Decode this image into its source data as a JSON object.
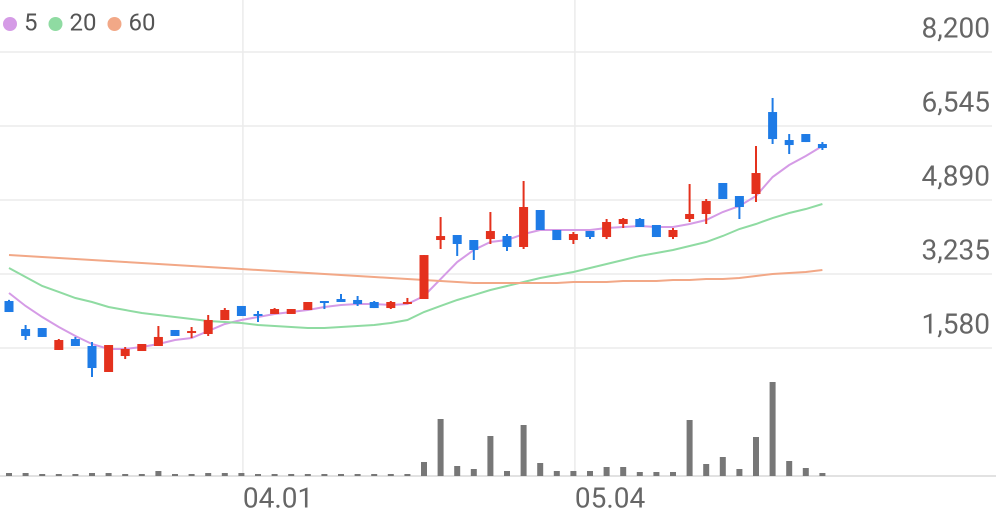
{
  "chart_data": {
    "type": "candlestick",
    "categories": [
      null,
      null,
      null,
      null,
      null,
      null,
      null,
      null,
      null,
      null,
      null,
      null,
      null,
      null,
      "04.01",
      null,
      null,
      null,
      null,
      null,
      null,
      null,
      null,
      null,
      null,
      null,
      null,
      null,
      null,
      null,
      null,
      null,
      null,
      null,
      "05.04",
      null,
      null,
      null,
      null,
      null,
      null,
      null,
      null,
      null,
      null,
      null,
      null,
      null,
      null,
      null
    ],
    "open": [
      2632,
      2006,
      2028,
      1537,
      1782,
      1626,
      1045,
      1402,
      1514,
      1626,
      1984,
      1917,
      1894,
      2207,
      2521,
      2342,
      2342,
      2342,
      2431,
      2632,
      2677,
      2655,
      2610,
      2475,
      2565,
      2677,
      3996,
      4108,
      3996,
      4018,
      4086,
      3840,
      4667,
      4220,
      3996,
      4197,
      4063,
      4354,
      4466,
      4332,
      4063,
      4466,
      4578,
      5271,
      4980,
      5025,
      6858,
      6232,
      6366,
      6143
    ],
    "high": [
      2658,
      2096,
      2028,
      1783,
      1828,
      1715,
      1648,
      1604,
      1671,
      2073,
      1984,
      2051,
      2319,
      2475,
      2521,
      2409,
      2475,
      2453,
      2610,
      2632,
      2789,
      2744,
      2632,
      2632,
      2700,
      3660,
      4510,
      4108,
      3996,
      4622,
      4130,
      5315,
      4667,
      4220,
      4175,
      4197,
      4466,
      4488,
      4488,
      4332,
      4265,
      5248,
      4913,
      5271,
      4980,
      6098,
      7172,
      6366,
      6366,
      6187
    ],
    "low": [
      2386,
      1760,
      1828,
      1537,
      1626,
      933,
      1045,
      1335,
      1514,
      1626,
      1850,
      1805,
      1850,
      2207,
      2297,
      2163,
      2342,
      2342,
      2431,
      2453,
      2610,
      2521,
      2475,
      2453,
      2565,
      2677,
      3795,
      3639,
      3549,
      3907,
      3751,
      3795,
      4220,
      3996,
      3907,
      4018,
      4018,
      4265,
      4287,
      4063,
      4018,
      4399,
      4354,
      4913,
      4466,
      4846,
      6143,
      5919,
      6187,
      6009
    ],
    "close": [
      2386,
      1850,
      1828,
      1760,
      1626,
      1134,
      1648,
      1559,
      1671,
      1828,
      1850,
      1961,
      2207,
      2431,
      2297,
      2319,
      2453,
      2453,
      2610,
      2588,
      2610,
      2565,
      2475,
      2610,
      2610,
      3660,
      4085,
      3907,
      3773,
      4197,
      3840,
      4734,
      4220,
      3996,
      4130,
      4063,
      4399,
      4466,
      4287,
      4063,
      4220,
      4578,
      4868,
      4913,
      4734,
      5494,
      6254,
      6120,
      6187,
      6053
    ],
    "up_color": "#e4311d",
    "down_color": "#1e7be6",
    "series": [
      {
        "name": "5",
        "color": "#d59be6",
        "values": [
          2811,
          2521,
          2274,
          2051,
          1850,
          1671,
          1559,
          1559,
          1604,
          1671,
          1760,
          1805,
          1961,
          2118,
          2207,
          2274,
          2342,
          2386,
          2431,
          2498,
          2543,
          2565,
          2565,
          2543,
          2565,
          2744,
          3124,
          3504,
          3773,
          3951,
          3996,
          4130,
          4220,
          4220,
          4220,
          4220,
          4265,
          4287,
          4309,
          4287,
          4287,
          4354,
          4443,
          4622,
          4756,
          4980,
          5405,
          5673,
          5875,
          6098
        ]
      },
      {
        "name": "20",
        "color": "#8fdba2",
        "values": [
          3370,
          3169,
          2968,
          2834,
          2699,
          2610,
          2498,
          2431,
          2364,
          2319,
          2274,
          2230,
          2185,
          2163,
          2140,
          2096,
          2073,
          2051,
          2028,
          2028,
          2051,
          2073,
          2096,
          2140,
          2207,
          2386,
          2521,
          2655,
          2766,
          2878,
          2968,
          3057,
          3147,
          3214,
          3281,
          3370,
          3460,
          3549,
          3639,
          3706,
          3773,
          3862,
          3951,
          4086,
          4242,
          4354,
          4488,
          4600,
          4689,
          4801
        ]
      },
      {
        "name": "60",
        "color": "#f2a887",
        "values": [
          3661,
          3639,
          3616,
          3594,
          3571,
          3549,
          3527,
          3504,
          3482,
          3460,
          3437,
          3415,
          3393,
          3370,
          3348,
          3325,
          3303,
          3281,
          3258,
          3236,
          3214,
          3191,
          3169,
          3147,
          3124,
          3102,
          3080,
          3057,
          3035,
          3035,
          3035,
          3035,
          3035,
          3035,
          3057,
          3057,
          3057,
          3080,
          3080,
          3080,
          3102,
          3102,
          3124,
          3124,
          3147,
          3191,
          3236,
          3258,
          3281,
          3325
        ]
      }
    ],
    "volume": [
      3,
      3,
      2,
      2,
      2,
      3,
      3,
      2,
      2,
      5,
      2,
      2,
      3,
      3,
      3,
      2,
      2,
      2,
      2,
      2,
      2,
      2,
      2,
      2,
      2,
      14,
      57,
      10,
      7,
      40,
      5,
      51,
      13,
      5,
      5,
      5,
      9,
      9,
      4,
      4,
      4,
      56,
      12,
      19,
      7,
      39,
      94,
      15,
      8,
      3
    ],
    "volume_color": "#777777",
    "volume_ylim": [
      0,
      100
    ],
    "ylim": [
      1000,
      9363
    ],
    "yticks": [
      {
        "value": 8200,
        "label": "8,200"
      },
      {
        "value": 6545,
        "label": "6,545"
      },
      {
        "value": 4890,
        "label": "4,890"
      },
      {
        "value": 3235,
        "label": "3,235"
      },
      {
        "value": 1580,
        "label": "1,580"
      }
    ],
    "grid": true
  }
}
